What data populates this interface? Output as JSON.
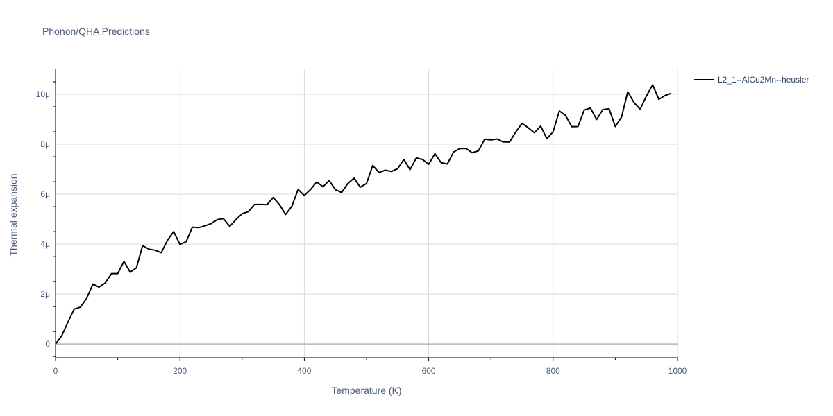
{
  "chart_data": {
    "type": "line",
    "title": "Phonon/QHA Predictions",
    "xlabel": "Temperature (K)",
    "ylabel": "Thermal expansion",
    "xlim": [
      0,
      1000
    ],
    "ylim": [
      -0.55,
      11.0
    ],
    "y_unit_suffix": "μ",
    "xticks": [
      0,
      200,
      400,
      600,
      800,
      1000
    ],
    "xtick_labels": [
      "0",
      "200",
      "400",
      "600",
      "800",
      "1000"
    ],
    "yticks": [
      0,
      2,
      4,
      6,
      8,
      10
    ],
    "ytick_labels": [
      "0",
      "2μ",
      "4μ",
      "6μ",
      "8μ",
      "10μ"
    ],
    "grid": true,
    "legend_position": "top-right",
    "series": [
      {
        "name": "L2_1--AlCu2Mn--heusler",
        "color": "#000000",
        "x": [
          0,
          10,
          20,
          30,
          40,
          50,
          60,
          70,
          80,
          90,
          100,
          110,
          120,
          130,
          140,
          150,
          160,
          170,
          180,
          190,
          200,
          210,
          220,
          230,
          240,
          250,
          260,
          270,
          280,
          290,
          300,
          310,
          320,
          330,
          340,
          350,
          360,
          370,
          380,
          390,
          400,
          410,
          420,
          430,
          440,
          450,
          460,
          470,
          480,
          490,
          500,
          510,
          520,
          530,
          540,
          550,
          560,
          570,
          580,
          590,
          600,
          610,
          620,
          630,
          640,
          650,
          660,
          670,
          680,
          690,
          700,
          710,
          720,
          730,
          740,
          750,
          760,
          770,
          780,
          790,
          800,
          810,
          820,
          830,
          840,
          850,
          860,
          870,
          880,
          890,
          900,
          910,
          920,
          930,
          940,
          950,
          960,
          970,
          980,
          990
        ],
        "y": [
          0.0,
          0.33,
          0.88,
          1.4,
          1.48,
          1.83,
          2.4,
          2.28,
          2.45,
          2.82,
          2.82,
          3.31,
          2.88,
          3.05,
          3.94,
          3.8,
          3.76,
          3.66,
          4.16,
          4.5,
          3.99,
          4.1,
          4.68,
          4.66,
          4.73,
          4.82,
          4.98,
          5.02,
          4.71,
          4.98,
          5.22,
          5.3,
          5.59,
          5.59,
          5.58,
          5.87,
          5.58,
          5.19,
          5.52,
          6.19,
          5.95,
          6.19,
          6.49,
          6.3,
          6.55,
          6.18,
          6.07,
          6.43,
          6.64,
          6.28,
          6.43,
          7.15,
          6.87,
          6.96,
          6.91,
          7.02,
          7.39,
          6.98,
          7.45,
          7.39,
          7.2,
          7.62,
          7.26,
          7.21,
          7.69,
          7.83,
          7.83,
          7.66,
          7.74,
          8.2,
          8.17,
          8.21,
          8.09,
          8.09,
          8.49,
          8.84,
          8.66,
          8.46,
          8.73,
          8.22,
          8.5,
          9.33,
          9.15,
          8.7,
          8.71,
          9.37,
          9.45,
          8.99,
          9.39,
          9.42,
          8.71,
          9.09,
          10.1,
          9.67,
          9.4,
          9.93,
          10.38,
          9.8,
          9.95,
          10.04
        ]
      }
    ]
  }
}
